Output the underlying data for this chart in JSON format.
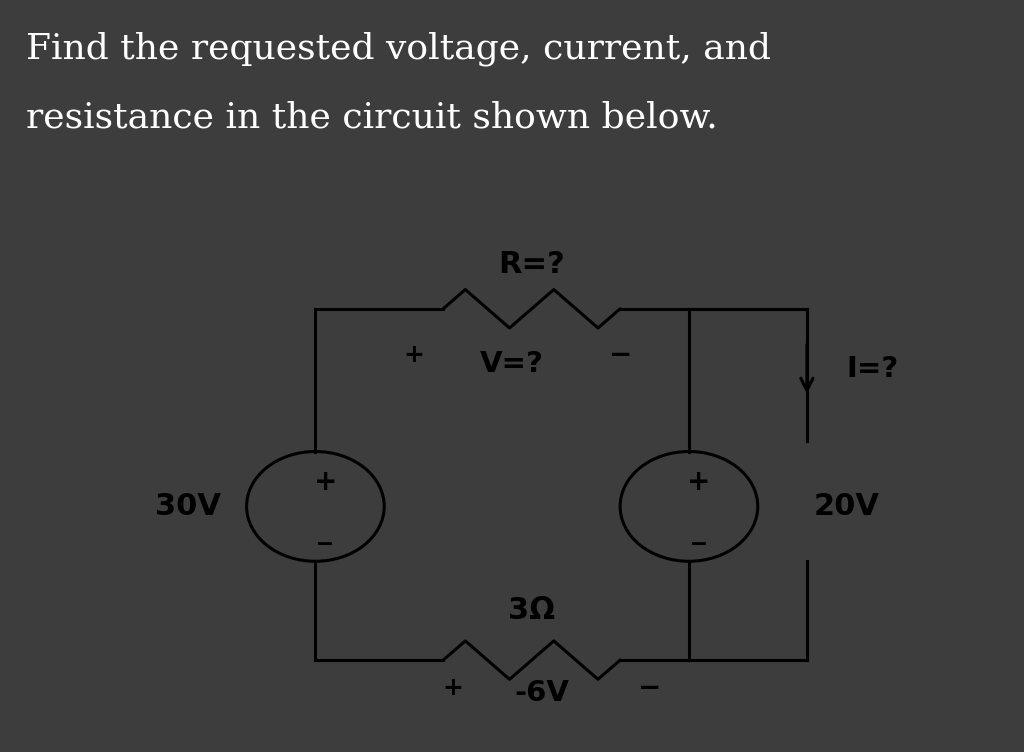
{
  "title_line1": "Find the requested voltage, current, and",
  "title_line2": "resistance in the circuit shown below.",
  "title_color": "#ffffff",
  "title_bg_color": "#3d3d3d",
  "circuit_bg_color": "#ffffff",
  "circuit_border_color": "#888888",
  "fig_bg_color": "#3d3d3d",
  "label_30V": "30V",
  "label_20V": "20V",
  "label_neg6V": "-6V",
  "label_R": "R=?",
  "label_V": "V=?",
  "label_I": "I=?",
  "label_3ohm": "3Ω",
  "plus_sign": "+",
  "minus_sign": "−"
}
